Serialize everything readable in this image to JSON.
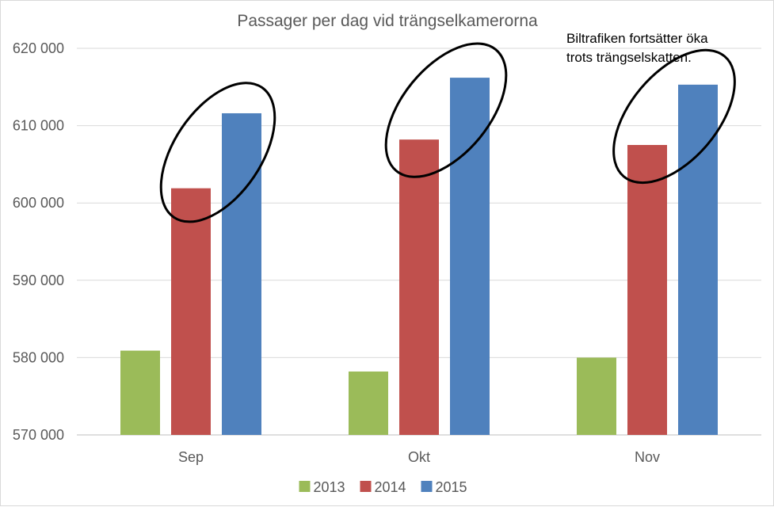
{
  "chart_data": {
    "type": "bar",
    "title": "Passager per dag vid trängselkamerorna",
    "categories": [
      "Sep",
      "Okt",
      "Nov"
    ],
    "series": [
      {
        "name": "2013",
        "color": "#9BBB59",
        "values": [
          580900,
          578200,
          580000
        ]
      },
      {
        "name": "2014",
        "color": "#C0504D",
        "values": [
          601900,
          608200,
          607500
        ]
      },
      {
        "name": "2015",
        "color": "#4F81BD",
        "values": [
          611600,
          616200,
          615300
        ]
      }
    ],
    "ylim": [
      570000,
      620000
    ],
    "yticks": [
      570000,
      580000,
      590000,
      600000,
      610000,
      620000
    ],
    "ytick_labels": [
      "570 000",
      "580 000",
      "590 000",
      "600 000",
      "610 000",
      "620 000"
    ],
    "grid": true,
    "legend_position": "bottom",
    "annotation": [
      "Biltrafiken fortsätter öka",
      "trots trängselskatten."
    ],
    "highlight": "ellipses around 2014 and 2015 bars in each month"
  }
}
